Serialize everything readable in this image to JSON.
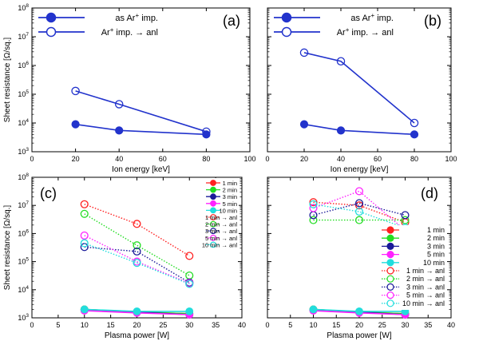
{
  "chart_data": [
    {
      "panel": "(a)",
      "type": "line",
      "xlabel": "Ion energy [keV]",
      "ylabel": "Sheet resistance [Ω/sq.]",
      "xlim": [
        0,
        100
      ],
      "xticks": [
        "0",
        "20",
        "40",
        "60",
        "80",
        "100"
      ],
      "ylim": [
        1000,
        100000000
      ],
      "yscale": "log",
      "yticks": [
        {
          "base": "10",
          "exp": "3"
        },
        {
          "base": "10",
          "exp": "4"
        },
        {
          "base": "10",
          "exp": "5"
        },
        {
          "base": "10",
          "exp": "6"
        },
        {
          "base": "10",
          "exp": "7"
        },
        {
          "base": "10",
          "exp": "8"
        }
      ],
      "legend_position": "top",
      "series": [
        {
          "name": "as Ar",
          "name_sup": "+",
          "name_tail": " imp.",
          "color": "#2233cc",
          "marker": "filled-circle",
          "style": "solid",
          "x": [
            20,
            40,
            80
          ],
          "values": [
            9000,
            5500,
            4000
          ]
        },
        {
          "name": "Ar",
          "name_sup": "+",
          "name_tail": " imp. → anl",
          "color": "#2233cc",
          "marker": "open-circle",
          "style": "solid",
          "x": [
            20,
            40,
            80
          ],
          "values": [
            130000,
            45000,
            5000
          ]
        }
      ]
    },
    {
      "panel": "(b)",
      "type": "line",
      "xlabel": "Ion energy [keV]",
      "ylabel": "",
      "xlim": [
        0,
        100
      ],
      "xticks": [
        "0",
        "20",
        "40",
        "60",
        "80",
        "100"
      ],
      "ylim": [
        1000,
        100000000
      ],
      "yscale": "log",
      "yticks": [],
      "legend_position": "top",
      "series": [
        {
          "name": "as Ar",
          "name_sup": "+",
          "name_tail": " imp.",
          "color": "#2233cc",
          "marker": "filled-circle",
          "style": "solid",
          "x": [
            20,
            40,
            80
          ],
          "values": [
            9000,
            5500,
            4000
          ]
        },
        {
          "name": "Ar",
          "name_sup": "+",
          "name_tail": " imp. → anl",
          "color": "#2233cc",
          "marker": "open-circle",
          "style": "solid",
          "x": [
            20,
            40,
            80
          ],
          "values": [
            2800000,
            1400000,
            10000
          ]
        }
      ]
    },
    {
      "panel": "(c)",
      "type": "line",
      "xlabel": "Plasma power [W]",
      "ylabel": "Sheet resistance [Ω/sq.]",
      "xlim": [
        0,
        40
      ],
      "xticks": [
        "0",
        "5",
        "10",
        "15",
        "20",
        "25",
        "30",
        "35",
        "40"
      ],
      "ylim": [
        1000,
        100000000
      ],
      "yscale": "log",
      "yticks": [
        {
          "base": "10",
          "exp": "3"
        },
        {
          "base": "10",
          "exp": "4"
        },
        {
          "base": "10",
          "exp": "5"
        },
        {
          "base": "10",
          "exp": "6"
        },
        {
          "base": "10",
          "exp": "7"
        },
        {
          "base": "10",
          "exp": "8"
        }
      ],
      "legend_position": "top-right",
      "series": [
        {
          "name": "1 min",
          "color": "#ff2020",
          "marker": "filled-circle",
          "style": "solid",
          "x": [
            10,
            20,
            30
          ],
          "values": [
            2000,
            1600,
            1400
          ]
        },
        {
          "name": "2 min",
          "color": "#22dd22",
          "marker": "filled-circle",
          "style": "solid",
          "x": [
            10,
            20,
            30
          ],
          "values": [
            2000,
            1600,
            1400
          ]
        },
        {
          "name": "3 min",
          "color": "#1a1a99",
          "marker": "filled-circle",
          "style": "solid",
          "x": [
            10,
            20,
            30
          ],
          "values": [
            1900,
            1600,
            1300
          ]
        },
        {
          "name": "5 min",
          "color": "#ff22ff",
          "marker": "filled-circle",
          "style": "solid",
          "x": [
            10,
            20,
            30
          ],
          "values": [
            1800,
            1500,
            1300
          ]
        },
        {
          "name": "10 min",
          "color": "#22dddd",
          "marker": "filled-circle",
          "style": "solid",
          "x": [
            10,
            20,
            30
          ],
          "values": [
            2000,
            1700,
            1700
          ]
        },
        {
          "name": "1 min → anl",
          "color": "#ff2020",
          "marker": "open-circle",
          "style": "dotted",
          "x": [
            10,
            20,
            30
          ],
          "values": [
            11000000,
            2200000,
            160000
          ]
        },
        {
          "name": "2 min → anl",
          "color": "#22dd22",
          "marker": "open-circle",
          "style": "dotted",
          "x": [
            10,
            20,
            30
          ],
          "values": [
            5000000,
            380000,
            32000
          ]
        },
        {
          "name": "3 min → anl",
          "color": "#1a1a99",
          "marker": "open-circle",
          "style": "dotted",
          "x": [
            10,
            20,
            30
          ],
          "values": [
            330000,
            230000,
            18000
          ]
        },
        {
          "name": "5 min → anl",
          "color": "#ff22ff",
          "marker": "open-circle",
          "style": "dotted",
          "x": [
            10,
            20,
            30
          ],
          "values": [
            850000,
            100000,
            17000
          ]
        },
        {
          "name": "10 min → anl",
          "color": "#22dddd",
          "marker": "open-circle",
          "style": "dotted",
          "x": [
            10,
            20,
            30
          ],
          "values": [
            450000,
            90000,
            16000
          ]
        }
      ]
    },
    {
      "panel": "(d)",
      "type": "line",
      "xlabel": "Plasma power [W]",
      "ylabel": "",
      "xlim": [
        0,
        40
      ],
      "xticks": [
        "0",
        "5",
        "10",
        "15",
        "20",
        "25",
        "30",
        "35",
        "40"
      ],
      "ylim": [
        1000,
        100000000
      ],
      "yscale": "log",
      "yticks": [],
      "legend_position": "right",
      "series": [
        {
          "name": "1 min",
          "color": "#ff2020",
          "marker": "filled-circle",
          "style": "solid",
          "x": [
            10,
            20,
            30
          ],
          "values": [
            2000,
            1600,
            1400
          ]
        },
        {
          "name": "2 min",
          "color": "#22dd22",
          "marker": "filled-circle",
          "style": "solid",
          "x": [
            10,
            20,
            30
          ],
          "values": [
            2000,
            1600,
            1400
          ]
        },
        {
          "name": "3 min",
          "color": "#1a1a99",
          "marker": "filled-circle",
          "style": "solid",
          "x": [
            10,
            20,
            30
          ],
          "values": [
            1900,
            1600,
            1300
          ]
        },
        {
          "name": "5 min",
          "color": "#ff22ff",
          "marker": "filled-circle",
          "style": "solid",
          "x": [
            10,
            20,
            30
          ],
          "values": [
            1800,
            1500,
            1300
          ]
        },
        {
          "name": "10 min",
          "color": "#22dddd",
          "marker": "filled-circle",
          "style": "solid",
          "x": [
            10,
            20,
            30
          ],
          "values": [
            2000,
            1700,
            1700
          ]
        },
        {
          "name": "1 min → anl",
          "color": "#ff2020",
          "marker": "open-circle",
          "style": "dotted",
          "x": [
            10,
            20,
            30
          ],
          "values": [
            13000000,
            10000000,
            2500000
          ]
        },
        {
          "name": "2 min → anl",
          "color": "#22dd22",
          "marker": "open-circle",
          "style": "dotted",
          "x": [
            10,
            20,
            30
          ],
          "values": [
            3000000,
            3000000,
            3000000
          ]
        },
        {
          "name": "3 min → anl",
          "color": "#1a1a99",
          "marker": "open-circle",
          "style": "dotted",
          "x": [
            10,
            20,
            30
          ],
          "values": [
            4500000,
            12000000,
            4500000
          ]
        },
        {
          "name": "5 min → anl",
          "color": "#ff22ff",
          "marker": "open-circle",
          "style": "dotted",
          "x": [
            10,
            20,
            30
          ],
          "values": [
            8000000,
            32000000,
            1300000
          ]
        },
        {
          "name": "10 min → anl",
          "color": "#22dddd",
          "marker": "open-circle",
          "style": "dotted",
          "x": [
            10,
            20,
            30
          ],
          "values": [
            11000000,
            6000000,
            1600000
          ]
        }
      ]
    }
  ]
}
